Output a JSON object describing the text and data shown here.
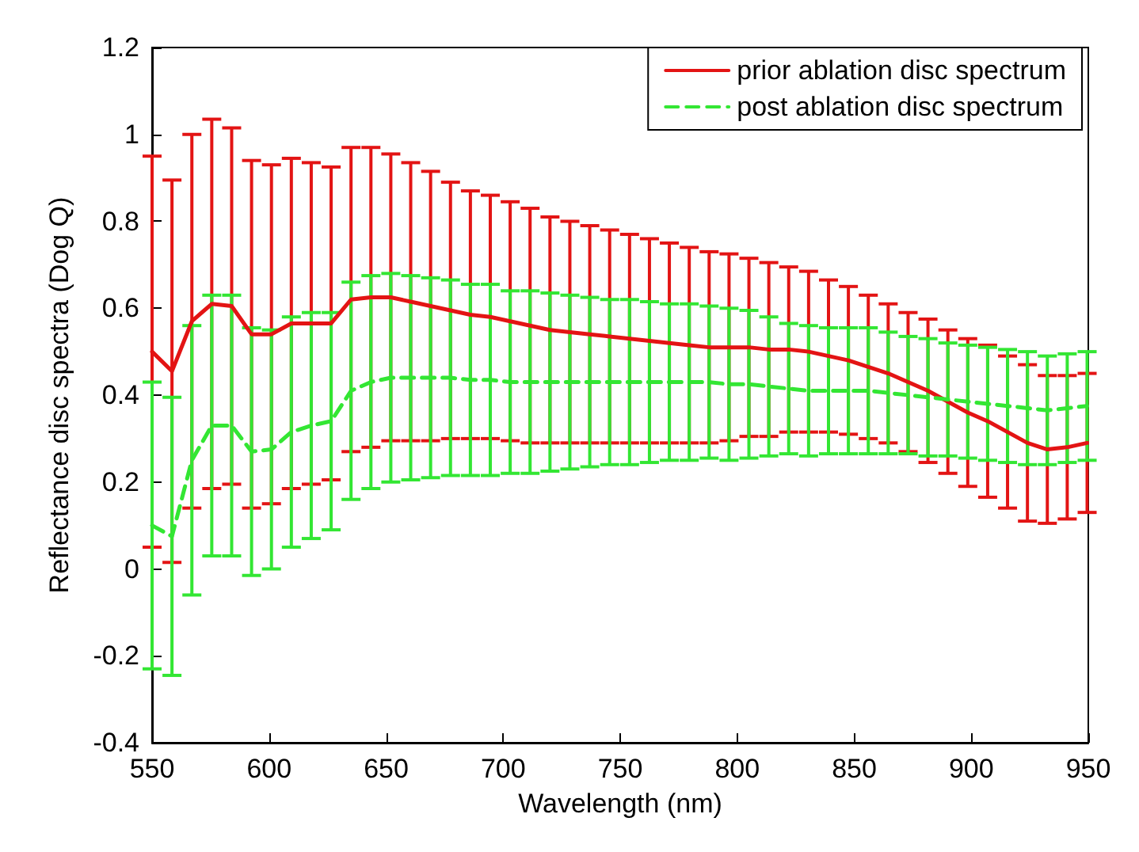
{
  "chart_data": {
    "type": "line",
    "xlabel": "Wavelength (nm)",
    "ylabel": "Reflectance disc spectra (Dog Q)",
    "x": [
      550,
      558.5,
      567,
      575.5,
      584,
      592.5,
      601,
      609.5,
      618,
      626.5,
      635,
      643.5,
      652,
      660.5,
      669,
      677.5,
      686,
      694.5,
      703,
      711.5,
      720,
      728.5,
      737,
      745.5,
      754,
      762.5,
      771,
      779.5,
      788,
      796.5,
      805,
      813.5,
      822,
      830.5,
      839,
      847.5,
      856,
      864.5,
      873,
      881.5,
      890,
      898.5,
      907,
      915.5,
      924,
      932.5,
      941,
      949.5
    ],
    "series": [
      {
        "name": "prior ablation disc spectrum",
        "color": "#e31414",
        "line_style": "solid",
        "values": [
          0.5,
          0.455,
          0.57,
          0.61,
          0.605,
          0.54,
          0.54,
          0.565,
          0.565,
          0.565,
          0.62,
          0.625,
          0.625,
          0.615,
          0.605,
          0.595,
          0.585,
          0.58,
          0.57,
          0.56,
          0.55,
          0.545,
          0.54,
          0.535,
          0.53,
          0.525,
          0.52,
          0.515,
          0.51,
          0.51,
          0.51,
          0.505,
          0.505,
          0.5,
          0.49,
          0.48,
          0.465,
          0.45,
          0.43,
          0.41,
          0.385,
          0.36,
          0.34,
          0.315,
          0.29,
          0.275,
          0.28,
          0.29
        ],
        "errors": [
          0.45,
          0.44,
          0.43,
          0.425,
          0.41,
          0.4,
          0.39,
          0.38,
          0.37,
          0.36,
          0.35,
          0.345,
          0.33,
          0.32,
          0.31,
          0.295,
          0.285,
          0.28,
          0.275,
          0.27,
          0.26,
          0.255,
          0.25,
          0.245,
          0.24,
          0.235,
          0.23,
          0.225,
          0.22,
          0.215,
          0.205,
          0.2,
          0.19,
          0.185,
          0.175,
          0.17,
          0.165,
          0.16,
          0.16,
          0.165,
          0.165,
          0.17,
          0.175,
          0.175,
          0.18,
          0.17,
          0.165,
          0.16
        ]
      },
      {
        "name": "post ablation disc spectrum",
        "color": "#33e633",
        "line_style": "dashed",
        "values": [
          0.1,
          0.075,
          0.25,
          0.33,
          0.33,
          0.27,
          0.275,
          0.315,
          0.33,
          0.34,
          0.41,
          0.43,
          0.44,
          0.44,
          0.44,
          0.44,
          0.435,
          0.435,
          0.43,
          0.43,
          0.43,
          0.43,
          0.43,
          0.43,
          0.43,
          0.43,
          0.43,
          0.43,
          0.43,
          0.425,
          0.425,
          0.42,
          0.415,
          0.41,
          0.41,
          0.41,
          0.41,
          0.405,
          0.4,
          0.395,
          0.39,
          0.385,
          0.38,
          0.375,
          0.37,
          0.365,
          0.37,
          0.375
        ],
        "errors": [
          0.33,
          0.32,
          0.31,
          0.3,
          0.3,
          0.285,
          0.275,
          0.265,
          0.26,
          0.25,
          0.25,
          0.245,
          0.24,
          0.235,
          0.23,
          0.225,
          0.22,
          0.22,
          0.21,
          0.21,
          0.205,
          0.2,
          0.195,
          0.19,
          0.19,
          0.185,
          0.18,
          0.18,
          0.175,
          0.175,
          0.17,
          0.16,
          0.15,
          0.15,
          0.145,
          0.145,
          0.145,
          0.14,
          0.135,
          0.135,
          0.13,
          0.13,
          0.13,
          0.13,
          0.13,
          0.125,
          0.125,
          0.125
        ]
      }
    ],
    "xlim": [
      550,
      950
    ],
    "xticks": [
      550,
      600,
      650,
      700,
      750,
      800,
      850,
      900,
      950
    ],
    "ylim": [
      -0.4,
      1.2
    ],
    "yticks": [
      -0.4,
      -0.2,
      0,
      0.2,
      0.4,
      0.6,
      0.8,
      1,
      1.2
    ],
    "grid": false,
    "legend": "top right",
    "marker": "none"
  }
}
